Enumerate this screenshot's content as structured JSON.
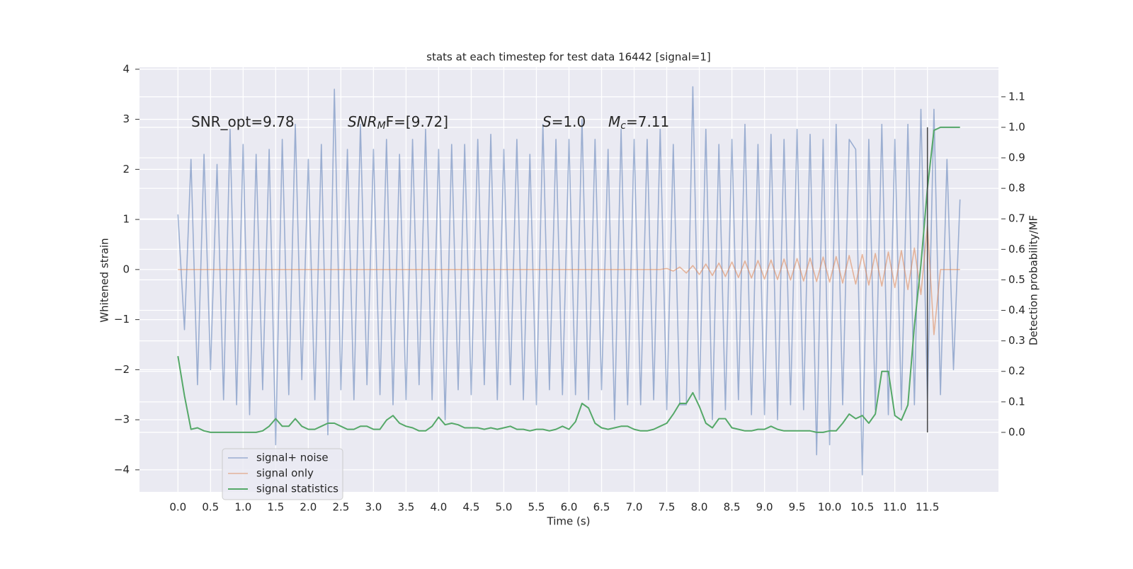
{
  "chart_data": {
    "type": "line",
    "title": "stats at each timestep for test data 16442 [signal=1]",
    "x_label": "Time (s)",
    "y_label": "Whitened strain",
    "y2_label": "Detection probability/MF",
    "grid": true,
    "legend": "lower left",
    "xlim": [
      -0.59,
      12.59
    ],
    "ylim": [
      -4.44,
      4.04
    ],
    "y2lim": [
      -0.195,
      1.197
    ],
    "xticks": [
      {
        "value": 0,
        "label": "0.0"
      },
      0.5,
      {
        "value": 1,
        "label": "1.0"
      },
      1.5,
      {
        "value": 2,
        "label": "2.0"
      },
      2.5,
      {
        "value": 3,
        "label": "3.0"
      },
      3.5,
      {
        "value": 4,
        "label": "4.0"
      },
      4.5,
      {
        "value": 5,
        "label": "5.0"
      },
      5.5,
      {
        "value": 6,
        "label": "6.0"
      },
      6.5,
      {
        "value": 7,
        "label": "7.0"
      },
      7.5,
      {
        "value": 8,
        "label": "8.0"
      },
      8.5,
      {
        "value": 9,
        "label": "9.0"
      },
      9.5,
      {
        "value": 10,
        "label": "10.0"
      },
      10.5,
      {
        "value": 11,
        "label": "11.0"
      },
      11.5
    ],
    "yticks": [
      {
        "value": -4,
        "label": "−4"
      },
      {
        "value": -3,
        "label": "−3"
      },
      {
        "value": -2,
        "label": "−2"
      },
      {
        "value": -1,
        "label": "−1"
      },
      0,
      1,
      2,
      3,
      4
    ],
    "y2ticks": [
      {
        "value": 0,
        "label": "0.0"
      },
      0.1,
      0.2,
      0.3,
      0.4,
      0.5,
      0.6,
      0.7,
      0.8,
      0.9,
      {
        "value": 1,
        "label": "1.0"
      },
      1.1
    ],
    "annotations": [
      {
        "text": "SNR_opt=9.78"
      },
      {
        "base": "SNR",
        "sub": "M",
        "after": "F=[9.72]"
      },
      {
        "base": "S",
        "after": "=1.0"
      },
      {
        "base": "M",
        "sub": "c",
        "after": "=7.11"
      }
    ],
    "vline": {
      "x": 11.5,
      "ymin": 0,
      "ymax": 1,
      "color": "#444444"
    },
    "x": [
      0.0,
      0.1,
      0.2,
      0.3,
      0.4,
      0.5,
      0.6,
      0.7,
      0.8,
      0.9,
      1.0,
      1.1,
      1.2,
      1.3,
      1.4,
      1.5,
      1.6,
      1.7,
      1.8,
      1.9,
      2.0,
      2.1,
      2.2,
      2.3,
      2.4,
      2.5,
      2.6,
      2.7,
      2.8,
      2.9,
      3.0,
      3.1,
      3.2,
      3.3,
      3.4,
      3.5,
      3.6,
      3.7,
      3.8,
      3.9,
      4.0,
      4.1,
      4.2,
      4.3,
      4.4,
      4.5,
      4.6,
      4.7,
      4.8,
      4.9,
      5.0,
      5.1,
      5.2,
      5.3,
      5.4,
      5.5,
      5.6,
      5.7,
      5.8,
      5.9,
      6.0,
      6.1,
      6.2,
      6.3,
      6.4,
      6.5,
      6.6,
      6.7,
      6.8,
      6.9,
      7.0,
      7.1,
      7.2,
      7.3,
      7.4,
      7.5,
      7.6,
      7.7,
      7.8,
      7.9,
      8.0,
      8.1,
      8.2,
      8.3,
      8.4,
      8.5,
      8.6,
      8.7,
      8.8,
      8.9,
      9.0,
      9.1,
      9.2,
      9.3,
      9.4,
      9.5,
      9.6,
      9.7,
      9.8,
      9.9,
      10.0,
      10.1,
      10.2,
      10.3,
      10.4,
      10.5,
      10.6,
      10.7,
      10.8,
      10.9,
      11.0,
      11.1,
      11.2,
      11.3,
      11.4,
      11.5,
      11.6,
      11.7,
      11.8,
      11.9,
      12.0
    ],
    "series": [
      {
        "name": "signal+ noise",
        "color": "#4c72b0",
        "values": [
          1.1,
          -1.2,
          2.2,
          -2.3,
          2.3,
          -2.0,
          2.1,
          -2.6,
          2.8,
          -2.7,
          2.5,
          -2.9,
          2.3,
          -2.4,
          2.4,
          -3.5,
          2.6,
          -2.5,
          2.9,
          -2.2,
          2.2,
          -2.6,
          2.5,
          -3.3,
          3.6,
          -2.4,
          2.4,
          -2.6,
          2.9,
          -2.3,
          2.4,
          -2.5,
          2.6,
          -2.7,
          2.3,
          -2.6,
          2.6,
          -2.3,
          2.8,
          -2.6,
          2.4,
          -3.0,
          2.5,
          -2.4,
          2.5,
          -2.5,
          2.6,
          -2.3,
          2.7,
          -2.6,
          2.4,
          -2.3,
          2.6,
          -2.6,
          2.3,
          -2.7,
          2.9,
          -2.4,
          2.6,
          -2.5,
          2.6,
          -2.5,
          3.0,
          -2.6,
          2.6,
          -2.4,
          2.4,
          -3.0,
          2.8,
          -2.7,
          2.6,
          -2.7,
          2.6,
          -2.6,
          2.8,
          -2.8,
          2.5,
          -2.7,
          -2.7,
          3.65,
          -2.6,
          2.8,
          -3.0,
          2.5,
          -2.8,
          2.6,
          -2.6,
          2.9,
          -2.9,
          2.5,
          -2.9,
          2.7,
          -3.0,
          2.6,
          -2.7,
          2.8,
          -2.8,
          2.7,
          -3.7,
          2.6,
          -3.5,
          2.9,
          -2.7,
          2.6,
          2.4,
          -4.1,
          2.6,
          -2.8,
          2.9,
          -2.9,
          2.6,
          -2.8,
          2.9,
          -2.7,
          3.2,
          -2.6,
          3.2,
          -2.5,
          2.2,
          -2.0,
          1.4
        ]
      },
      {
        "name": "signal only",
        "color": "#dd8452",
        "values": [
          0,
          0,
          0,
          0,
          0,
          0,
          0,
          0,
          0,
          0,
          0,
          0,
          0,
          0,
          0,
          0,
          0,
          0,
          0,
          0,
          0,
          0,
          0,
          0,
          0,
          0,
          0,
          0,
          0,
          0,
          0,
          0,
          0,
          0,
          0,
          0,
          0,
          0,
          0,
          0,
          0,
          0,
          0,
          0,
          0,
          0,
          0,
          0,
          0,
          0,
          0,
          0,
          0,
          0,
          0,
          0,
          0,
          0,
          0,
          0,
          0,
          0,
          0,
          0,
          0,
          0,
          0,
          0,
          0,
          0,
          0,
          0,
          0,
          0,
          0,
          0.02,
          -0.03,
          0.05,
          -0.07,
          0.08,
          -0.1,
          0.11,
          -0.12,
          0.13,
          -0.14,
          0.15,
          -0.16,
          0.17,
          -0.17,
          0.18,
          -0.19,
          0.19,
          -0.2,
          0.21,
          -0.21,
          0.22,
          -0.23,
          0.23,
          -0.24,
          0.25,
          -0.25,
          0.26,
          -0.27,
          0.28,
          -0.29,
          0.3,
          -0.31,
          0.32,
          -0.33,
          0.35,
          -0.36,
          0.38,
          -0.4,
          0.43,
          -0.5,
          0.88,
          -1.3,
          0,
          0,
          0,
          0
        ]
      },
      {
        "name": "signal statistics",
        "color": "#55a868",
        "axis": "y2",
        "values": [
          0.25,
          0.12,
          0.01,
          0.015,
          0.005,
          0,
          0,
          0,
          0,
          0,
          0,
          0,
          0,
          0.005,
          0.02,
          0.045,
          0.02,
          0.02,
          0.045,
          0.02,
          0.01,
          0.01,
          0.02,
          0.03,
          0.03,
          0.02,
          0.01,
          0.01,
          0.02,
          0.02,
          0.01,
          0.01,
          0.04,
          0.055,
          0.03,
          0.02,
          0.015,
          0.005,
          0.005,
          0.02,
          0.05,
          0.025,
          0.03,
          0.025,
          0.015,
          0.015,
          0.015,
          0.01,
          0.015,
          0.01,
          0.015,
          0.02,
          0.01,
          0.01,
          0.005,
          0.01,
          0.01,
          0.005,
          0.01,
          0.02,
          0.01,
          0.035,
          0.095,
          0.08,
          0.03,
          0.015,
          0.01,
          0.015,
          0.02,
          0.02,
          0.01,
          0.005,
          0.005,
          0.01,
          0.02,
          0.03,
          0.06,
          0.095,
          0.095,
          0.13,
          0.085,
          0.03,
          0.015,
          0.045,
          0.045,
          0.015,
          0.01,
          0.005,
          0.005,
          0.01,
          0.01,
          0.02,
          0.01,
          0.005,
          0.005,
          0.005,
          0.005,
          0.005,
          0,
          0,
          0.005,
          0.005,
          0.03,
          0.06,
          0.045,
          0.055,
          0.03,
          0.06,
          0.2,
          0.2,
          0.055,
          0.04,
          0.09,
          0.35,
          0.55,
          0.8,
          0.99,
          1.0,
          1.0,
          1.0,
          1.0
        ]
      }
    ]
  }
}
